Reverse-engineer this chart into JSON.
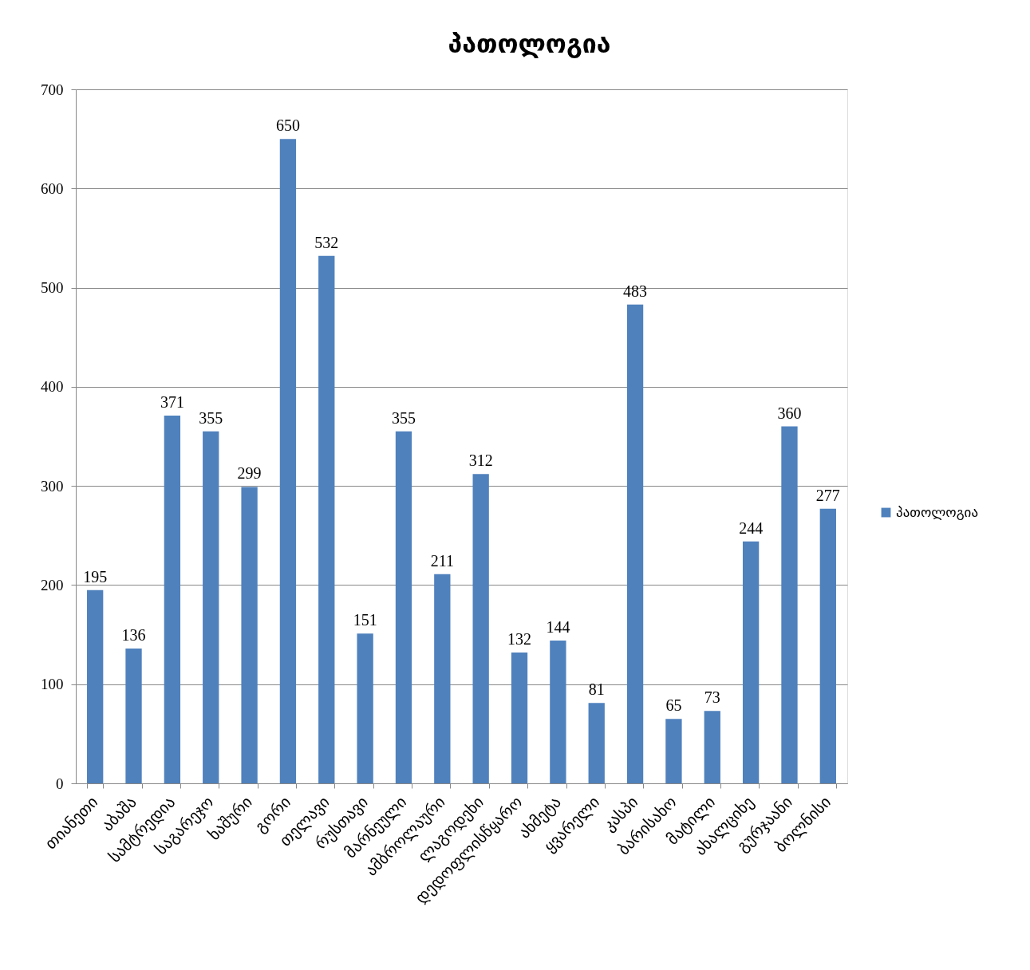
{
  "chart_data": {
    "type": "bar",
    "title": "პათოლოგია",
    "categories": [
      "თიანეთი",
      "აბაშა",
      "სამტრედია",
      "საგარეჯო",
      "ხაშური",
      "გორი",
      "თელავი",
      "რუსთავი",
      "მარნეული",
      "ამბროლაური",
      "ლაგოდეხი",
      "დედოფლისწყარო",
      "ახმეტა",
      "ყვარელი",
      "კასპი",
      "ბარისახო",
      "მატილი",
      "ახალციხე",
      "გურჯაანი",
      "ბოლნისი"
    ],
    "series": [
      {
        "name": "პათოლოგია",
        "color": "#4f81bd",
        "values": [
          195,
          136,
          371,
          355,
          299,
          650,
          532,
          151,
          355,
          211,
          312,
          132,
          144,
          81,
          483,
          65,
          73,
          244,
          360,
          277
        ]
      }
    ],
    "ylim": [
      0,
      700
    ],
    "yticks": [
      0,
      100,
      200,
      300,
      400,
      500,
      600,
      700
    ],
    "grid": "y",
    "legend": "right",
    "data_labels": true
  }
}
